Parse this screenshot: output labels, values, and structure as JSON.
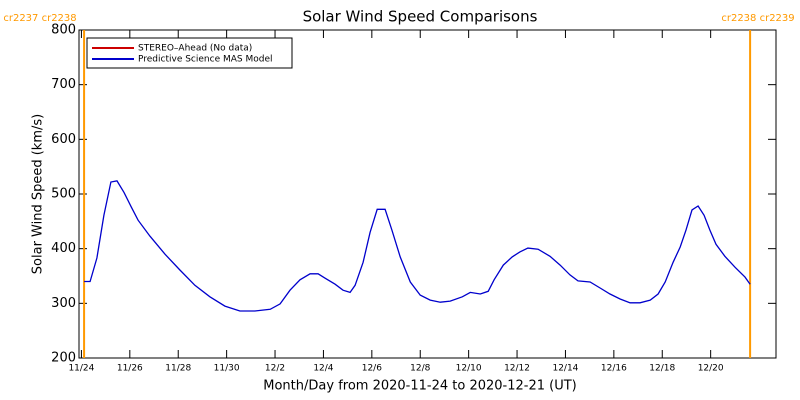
{
  "chart_data": {
    "type": "line",
    "title": "Solar Wind Speed Comparisons",
    "xlabel": "Month/Day from 2020-11-24 to 2020-12-21 (UT)",
    "ylabel": "Solar Wind Speed (km/s)",
    "x": [
      0.11,
      0.36,
      0.64,
      0.93,
      1.22,
      1.47,
      1.76,
      2.06,
      2.34,
      2.83,
      3.45,
      4.07,
      4.69,
      5.31,
      5.93,
      6.55,
      7.17,
      7.8,
      8.21,
      8.62,
      9.03,
      9.45,
      9.78,
      10.07,
      10.48,
      10.81,
      11.1,
      11.31,
      11.64,
      11.93,
      12.22,
      12.55,
      12.83,
      13.17,
      13.59,
      14.0,
      14.41,
      14.83,
      15.24,
      15.74,
      16.07,
      16.48,
      16.81,
      17.05,
      17.43,
      17.8,
      18.12,
      18.45,
      18.87,
      19.36,
      19.78,
      20.19,
      20.52,
      21.02,
      21.43,
      21.84,
      22.26,
      22.67,
      23.08,
      23.5,
      23.83,
      24.12,
      24.45,
      24.74,
      24.98,
      25.23,
      25.48,
      25.73,
      25.97,
      26.22,
      26.59,
      27.01,
      27.42,
      27.63
    ],
    "series": [
      {
        "name": "STEREO–Ahead (No data)",
        "color": "#cc0000",
        "values": [
          null,
          null,
          null,
          null,
          null,
          null,
          null,
          null,
          null,
          null,
          null,
          null,
          null,
          null,
          null,
          null,
          null,
          null,
          null,
          null,
          null,
          null,
          null,
          null,
          null,
          null,
          null,
          null,
          null,
          null,
          null,
          null,
          null,
          null,
          null,
          null,
          null,
          null,
          null,
          null,
          null,
          null,
          null,
          null,
          null,
          null,
          null,
          null,
          null,
          null,
          null,
          null,
          null,
          null,
          null,
          null,
          null,
          null,
          null,
          null,
          null,
          null,
          null,
          null,
          null,
          null,
          null,
          null,
          null,
          null,
          null,
          null,
          null,
          null
        ]
      },
      {
        "name": "Predictive Science MAS Model",
        "color": "#0000cc",
        "values": [
          340,
          340,
          383,
          461,
          522,
          524,
          503,
          476,
          452,
          423,
          390,
          361,
          333,
          312,
          295,
          286,
          286,
          289,
          299,
          324,
          343,
          354,
          354,
          346,
          335,
          324,
          320,
          333,
          375,
          430,
          472,
          472,
          434,
          385,
          339,
          315,
          306,
          302,
          304,
          312,
          320,
          317,
          322,
          343,
          370,
          385,
          394,
          401,
          399,
          386,
          370,
          352,
          341,
          339,
          328,
          317,
          308,
          301,
          301,
          306,
          317,
          339,
          375,
          403,
          434,
          471,
          478,
          461,
          434,
          408,
          386,
          366,
          348,
          335
        ]
      }
    ],
    "xlim": [
      -0.1,
      28.7
    ],
    "ylim": [
      200,
      800
    ],
    "yticks": [
      200,
      300,
      400,
      500,
      600,
      700,
      800
    ],
    "xticks": [
      {
        "value": 0,
        "label": "11/24"
      },
      {
        "value": 2,
        "label": "11/26"
      },
      {
        "value": 4,
        "label": "11/28"
      },
      {
        "value": 6,
        "label": "11/30"
      },
      {
        "value": 8,
        "label": "12/2"
      },
      {
        "value": 10,
        "label": "12/4"
      },
      {
        "value": 12,
        "label": "12/6"
      },
      {
        "value": 14,
        "label": "12/8"
      },
      {
        "value": 16,
        "label": "12/10"
      },
      {
        "value": 18,
        "label": "12/12"
      },
      {
        "value": 20,
        "label": "12/14"
      },
      {
        "value": 22,
        "label": "12/16"
      },
      {
        "value": 24,
        "label": "12/18"
      },
      {
        "value": 26,
        "label": "12/20"
      }
    ],
    "markers": [
      {
        "x": 0.11,
        "label": "cr2237 cr2238"
      },
      {
        "x": 27.63,
        "label": "cr2238 cr2239"
      }
    ],
    "marker_color": "#ff9900"
  }
}
